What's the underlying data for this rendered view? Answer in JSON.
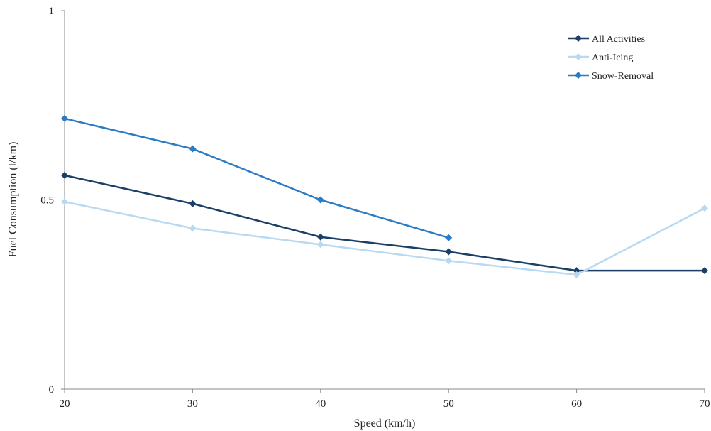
{
  "chart_data": {
    "type": "line",
    "title": "",
    "xlabel": "Speed (km/h)",
    "ylabel": "Fuel Consumption (l/km)",
    "x": [
      20,
      30,
      40,
      50,
      60,
      70
    ],
    "x_tick_labels": [
      "20",
      "30",
      "40",
      "50",
      "60",
      "70"
    ],
    "y_tick_labels": [
      "0",
      "0.5",
      "1"
    ],
    "xlim": [
      20,
      70
    ],
    "ylim": [
      0,
      1
    ],
    "grid": false,
    "legend_position": "top-right",
    "series": [
      {
        "name": "All Activities",
        "color": "#1b3f66",
        "marker": "diamond",
        "values": [
          0.565,
          0.49,
          0.402,
          0.363,
          0.313,
          0.313
        ]
      },
      {
        "name": "Anti-Icing",
        "color": "#b8d9f2",
        "marker": "diamond",
        "values": [
          0.495,
          0.425,
          0.382,
          0.339,
          0.302,
          0.478
        ]
      },
      {
        "name": "Snow-Removal",
        "color": "#2b7cc4",
        "marker": "diamond",
        "values": [
          0.715,
          0.635,
          0.5,
          0.4,
          null,
          null
        ]
      }
    ]
  }
}
